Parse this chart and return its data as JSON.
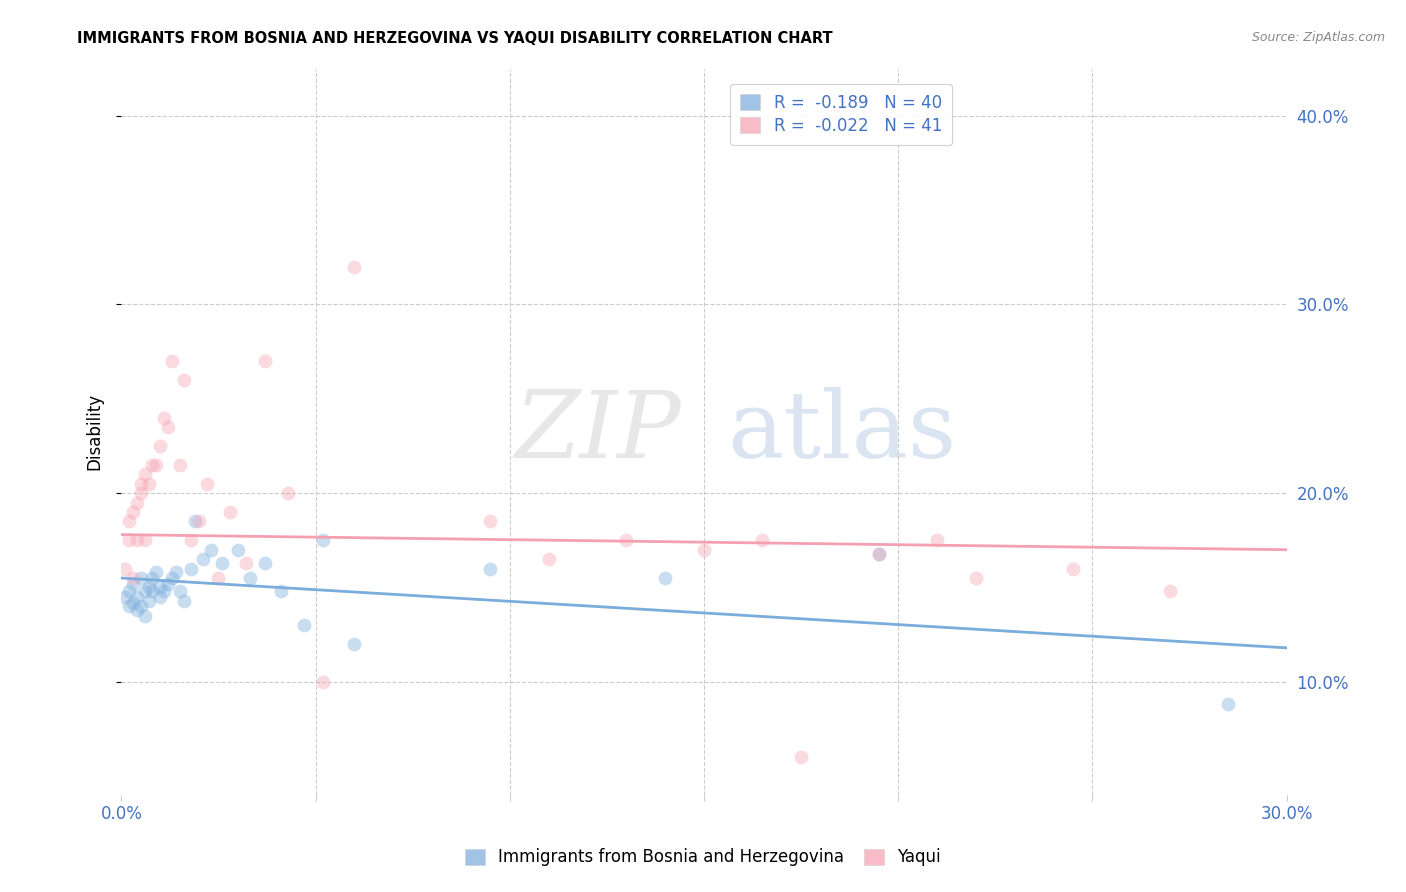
{
  "title": "IMMIGRANTS FROM BOSNIA AND HERZEGOVINA VS YAQUI DISABILITY CORRELATION CHART",
  "source": "Source: ZipAtlas.com",
  "ylabel": "Disability",
  "xlim": [
    0.0,
    0.3
  ],
  "ylim": [
    0.04,
    0.425
  ],
  "watermark_zip": "ZIP",
  "watermark_atlas": "atlas",
  "blue_color": "#7aacdc",
  "pink_color": "#f4a0b0",
  "blue_scatter_x": [
    0.001,
    0.002,
    0.002,
    0.003,
    0.003,
    0.004,
    0.004,
    0.005,
    0.005,
    0.006,
    0.006,
    0.007,
    0.007,
    0.008,
    0.008,
    0.009,
    0.01,
    0.01,
    0.011,
    0.012,
    0.013,
    0.014,
    0.015,
    0.016,
    0.018,
    0.019,
    0.021,
    0.023,
    0.026,
    0.03,
    0.033,
    0.037,
    0.041,
    0.047,
    0.052,
    0.06,
    0.095,
    0.14,
    0.195,
    0.285
  ],
  "blue_scatter_y": [
    0.145,
    0.148,
    0.14,
    0.152,
    0.142,
    0.138,
    0.145,
    0.155,
    0.14,
    0.148,
    0.135,
    0.15,
    0.143,
    0.155,
    0.148,
    0.158,
    0.15,
    0.145,
    0.148,
    0.152,
    0.155,
    0.158,
    0.148,
    0.143,
    0.16,
    0.185,
    0.165,
    0.17,
    0.163,
    0.17,
    0.155,
    0.163,
    0.148,
    0.13,
    0.175,
    0.12,
    0.16,
    0.155,
    0.168,
    0.088
  ],
  "pink_scatter_x": [
    0.001,
    0.002,
    0.002,
    0.003,
    0.003,
    0.004,
    0.004,
    0.005,
    0.005,
    0.006,
    0.006,
    0.007,
    0.008,
    0.009,
    0.01,
    0.011,
    0.012,
    0.013,
    0.015,
    0.016,
    0.018,
    0.02,
    0.022,
    0.025,
    0.028,
    0.032,
    0.037,
    0.043,
    0.052,
    0.06,
    0.095,
    0.11,
    0.13,
    0.15,
    0.165,
    0.175,
    0.195,
    0.21,
    0.22,
    0.245,
    0.27
  ],
  "pink_scatter_y": [
    0.16,
    0.175,
    0.185,
    0.19,
    0.155,
    0.175,
    0.195,
    0.205,
    0.2,
    0.21,
    0.175,
    0.205,
    0.215,
    0.215,
    0.225,
    0.24,
    0.235,
    0.27,
    0.215,
    0.26,
    0.175,
    0.185,
    0.205,
    0.155,
    0.19,
    0.163,
    0.27,
    0.2,
    0.1,
    0.32,
    0.185,
    0.165,
    0.175,
    0.17,
    0.175,
    0.06,
    0.168,
    0.175,
    0.155,
    0.16,
    0.148
  ],
  "blue_trendline_x": [
    0.0,
    0.3
  ],
  "blue_trendline_y": [
    0.155,
    0.118
  ],
  "pink_trendline_x": [
    0.0,
    0.3
  ],
  "pink_trendline_y": [
    0.178,
    0.17
  ],
  "grid_color": "#cccccc",
  "background_color": "#ffffff",
  "right_ytick_color": "#4472c4",
  "marker_size": 100,
  "marker_alpha": 0.4,
  "legend_R1": "R = ",
  "legend_R1val": "-0.189",
  "legend_N1": "  N = ",
  "legend_N1val": "40",
  "legend_R2": "R = ",
  "legend_R2val": "-0.022",
  "legend_N2": "  N = ",
  "legend_N2val": "41"
}
